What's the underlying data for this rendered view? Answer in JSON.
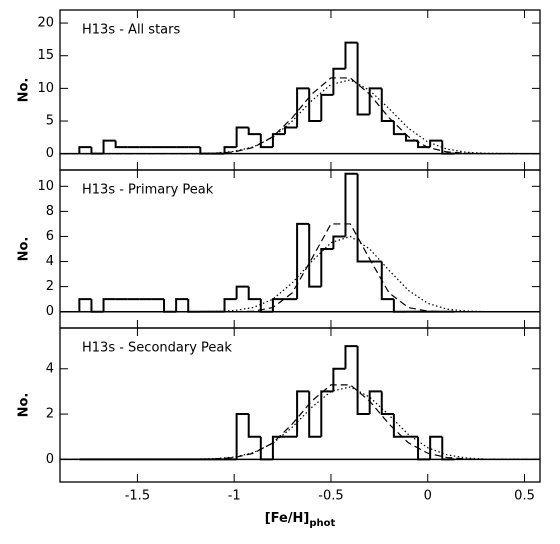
{
  "chart_data": [
    {
      "type": "histogram",
      "title": "H13s - All stars",
      "ylabel": "No.",
      "bins": [
        -1.8,
        -1.7375,
        -1.675,
        -1.6125,
        -1.55,
        -1.4875,
        -1.425,
        -1.3625,
        -1.3,
        -1.2375,
        -1.175,
        -1.1125,
        -1.05,
        -0.9875,
        -0.925,
        -0.8625,
        -0.8,
        -0.7375,
        -0.675,
        -0.6125,
        -0.55,
        -0.4875,
        -0.425,
        -0.3625,
        -0.3,
        -0.2375,
        -0.175,
        -0.1125,
        -0.05,
        0.0125,
        0.075,
        0.1375
      ],
      "counts": [
        1,
        0,
        2,
        1,
        1,
        1,
        1,
        1,
        1,
        1,
        0,
        0,
        1,
        4,
        3,
        1,
        3,
        4,
        10,
        5,
        9,
        13,
        17,
        6,
        10,
        5,
        3,
        2,
        1,
        2,
        0
      ],
      "curves": [
        {
          "style": "dashed",
          "x": [
            -1.9,
            -1.2,
            -1.1,
            -1.0,
            -0.9,
            -0.8,
            -0.7,
            -0.6,
            -0.5,
            -0.4,
            -0.3,
            -0.2,
            -0.1,
            0.0,
            0.1,
            0.2,
            0.3,
            0.58
          ],
          "values": [
            0,
            0.01,
            0.06,
            0.27,
            0.96,
            2.6,
            5.5,
            9.1,
            11.6,
            11.6,
            9.1,
            5.5,
            2.6,
            0.96,
            0.27,
            0.06,
            0.01,
            0
          ]
        },
        {
          "style": "dotted",
          "x": [
            -1.9,
            -1.2,
            -1.1,
            -1.0,
            -0.9,
            -0.8,
            -0.7,
            -0.6,
            -0.5,
            -0.4,
            -0.3,
            -0.2,
            -0.1,
            0.0,
            0.1,
            0.2,
            0.3,
            0.58
          ],
          "values": [
            0,
            0.02,
            0.09,
            0.35,
            1.05,
            2.5,
            5.0,
            8.1,
            10.6,
            11.3,
            9.7,
            6.9,
            3.9,
            1.8,
            0.7,
            0.21,
            0.05,
            0
          ]
        }
      ],
      "xlim": [
        -1.9,
        0.58
      ],
      "ylim": [
        -2.5,
        22
      ],
      "yticks": [
        0,
        5,
        10,
        15,
        20
      ]
    },
    {
      "type": "histogram",
      "title": "H13s - Primary Peak",
      "ylabel": "No.",
      "bins": [
        -1.8,
        -1.7375,
        -1.675,
        -1.6125,
        -1.55,
        -1.4875,
        -1.425,
        -1.3625,
        -1.3,
        -1.2375,
        -1.175,
        -1.1125,
        -1.05,
        -0.9875,
        -0.925,
        -0.8625,
        -0.8,
        -0.7375,
        -0.675,
        -0.6125,
        -0.55,
        -0.4875,
        -0.425,
        -0.3625,
        -0.3,
        -0.2375,
        -0.175,
        -0.1125,
        -0.05,
        0.0125,
        0.075,
        0.1375
      ],
      "counts": [
        1,
        0,
        1,
        1,
        1,
        1,
        1,
        0,
        1,
        0,
        0,
        0,
        1,
        2,
        1,
        0,
        1,
        1,
        7,
        2,
        5,
        6,
        11,
        4,
        4,
        1,
        0,
        0,
        0,
        0,
        0
      ],
      "curves": [
        {
          "style": "dashed",
          "x": [
            -1.9,
            -1.2,
            -1.1,
            -1.0,
            -0.9,
            -0.8,
            -0.7,
            -0.6,
            -0.5,
            -0.4,
            -0.3,
            -0.2,
            -0.1,
            0.0,
            0.1,
            0.2,
            0.3,
            0.58
          ],
          "values": [
            0,
            0,
            0,
            0,
            0.04,
            0.33,
            1.5,
            4.2,
            7.0,
            7.0,
            4.2,
            1.5,
            0.33,
            0.04,
            0,
            0,
            0,
            0
          ]
        },
        {
          "style": "dotted",
          "x": [
            -1.9,
            -1.2,
            -1.1,
            -1.0,
            -0.9,
            -0.8,
            -0.7,
            -0.6,
            -0.5,
            -0.4,
            -0.3,
            -0.2,
            -0.1,
            0.0,
            0.1,
            0.2,
            0.3,
            0.58
          ],
          "values": [
            0,
            0,
            0.02,
            0.09,
            0.34,
            1.0,
            2.3,
            4.0,
            5.5,
            6.0,
            5.0,
            3.3,
            1.7,
            0.67,
            0.2,
            0.05,
            0.01,
            0
          ]
        }
      ],
      "xlim": [
        -1.9,
        0.58
      ],
      "ylim": [
        -1.3,
        11.3
      ],
      "yticks": [
        0,
        2,
        4,
        6,
        8,
        10
      ]
    },
    {
      "type": "histogram",
      "title": "H13s - Secondary Peak",
      "ylabel": "No.",
      "bins": [
        -1.8,
        -1.7375,
        -1.675,
        -1.6125,
        -1.55,
        -1.4875,
        -1.425,
        -1.3625,
        -1.3,
        -1.2375,
        -1.175,
        -1.1125,
        -1.05,
        -0.9875,
        -0.925,
        -0.8625,
        -0.8,
        -0.7375,
        -0.675,
        -0.6125,
        -0.55,
        -0.4875,
        -0.425,
        -0.3625,
        -0.3,
        -0.2375,
        -0.175,
        -0.1125,
        -0.05,
        0.0125,
        0.075,
        0.1375
      ],
      "counts": [
        0,
        0,
        0,
        0,
        0,
        0,
        0,
        0,
        0,
        0,
        0,
        0,
        0,
        2,
        1,
        0,
        1,
        1,
        3,
        1,
        3,
        4,
        5,
        2,
        3,
        2,
        1,
        1,
        0,
        1,
        0
      ],
      "curves": [
        {
          "style": "dashed",
          "x": [
            -1.9,
            -1.2,
            -1.1,
            -1.0,
            -0.9,
            -0.8,
            -0.7,
            -0.6,
            -0.5,
            -0.4,
            -0.3,
            -0.2,
            -0.1,
            0.0,
            0.1,
            0.2,
            0.3,
            0.58
          ],
          "values": [
            0,
            0,
            0.02,
            0.08,
            0.27,
            0.73,
            1.56,
            2.57,
            3.29,
            3.29,
            2.57,
            1.56,
            0.73,
            0.27,
            0.08,
            0.02,
            0,
            0
          ]
        },
        {
          "style": "dotted",
          "x": [
            -1.9,
            -1.2,
            -1.1,
            -1.0,
            -0.9,
            -0.8,
            -0.7,
            -0.6,
            -0.5,
            -0.4,
            -0.3,
            -0.2,
            -0.1,
            0.0,
            0.1,
            0.2,
            0.3,
            0.58
          ],
          "values": [
            0,
            0.01,
            0.03,
            0.1,
            0.3,
            0.71,
            1.42,
            2.29,
            3.0,
            3.2,
            2.75,
            1.95,
            1.1,
            0.51,
            0.2,
            0.06,
            0.01,
            0
          ]
        }
      ],
      "xlim": [
        -1.9,
        0.58
      ],
      "ylim": [
        -1,
        5.8
      ],
      "yticks": [
        0,
        2,
        4
      ],
      "xticks": [
        -1.5,
        -1,
        -0.5,
        0,
        0.5
      ],
      "xlabel": "[Fe/H]",
      "xlabel_sub": "phot"
    }
  ]
}
